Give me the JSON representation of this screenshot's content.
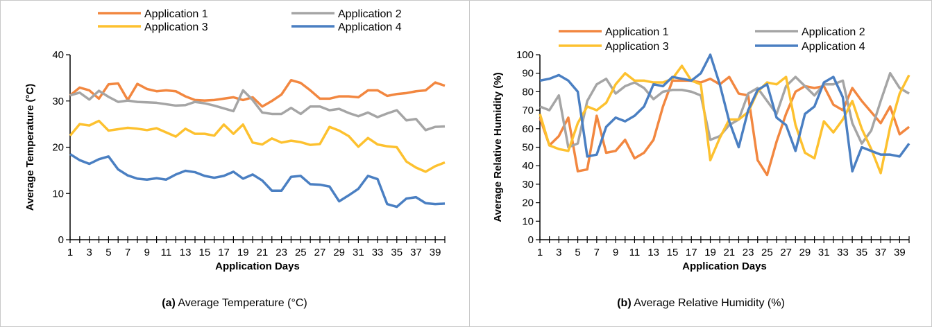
{
  "colors": {
    "Application 1": "#F28740",
    "Application 2": "#A5A5A5",
    "Application 3": "#FDC12F",
    "Application 4": "#4A7FC2",
    "panel_border": "#C8C8C8"
  },
  "chart_data": [
    {
      "type": "line",
      "caption_tag": "(a)",
      "caption_text": "Average Temperature (°C)",
      "xlabel": "Application Days",
      "ylabel": "Average Temperature (°C)",
      "ylim": [
        0,
        40
      ],
      "yticks": [
        0,
        10,
        20,
        30,
        40
      ],
      "xlim": [
        1,
        40
      ],
      "xticks": [
        1,
        3,
        5,
        7,
        9,
        11,
        13,
        15,
        17,
        19,
        21,
        23,
        25,
        27,
        29,
        31,
        33,
        35,
        37,
        39
      ],
      "legend_position": "top",
      "grid": false,
      "x": [
        1,
        2,
        3,
        4,
        5,
        6,
        7,
        8,
        9,
        10,
        11,
        12,
        13,
        14,
        15,
        16,
        17,
        18,
        19,
        20,
        21,
        22,
        23,
        24,
        25,
        26,
        27,
        28,
        29,
        30,
        31,
        32,
        33,
        34,
        35,
        36,
        37,
        38,
        39,
        40
      ],
      "series": [
        {
          "name": "Application 1",
          "values": [
            31.2,
            32.9,
            32.3,
            30.5,
            33.6,
            33.8,
            30.2,
            33.7,
            32.6,
            32.1,
            32.3,
            32.1,
            31.0,
            30.2,
            30.1,
            30.2,
            30.5,
            30.8,
            30.2,
            30.8,
            28.8,
            30.0,
            31.4,
            34.5,
            33.9,
            32.3,
            30.5,
            30.5,
            31.0,
            31.0,
            30.8,
            32.3,
            32.3,
            31.1,
            31.5,
            31.7,
            32.1,
            32.3,
            34.0,
            33.3
          ]
        },
        {
          "name": "Application 2",
          "values": [
            31.2,
            31.8,
            30.3,
            32.2,
            30.9,
            29.8,
            30.1,
            29.8,
            29.7,
            29.6,
            29.3,
            29.0,
            29.1,
            29.8,
            29.5,
            29.0,
            28.4,
            27.8,
            32.3,
            30.2,
            27.5,
            27.2,
            27.2,
            28.5,
            27.2,
            28.8,
            28.8,
            28.0,
            28.3,
            27.4,
            26.7,
            27.5,
            26.5,
            27.3,
            28.0,
            25.8,
            26.1,
            23.7,
            24.4,
            24.5
          ]
        },
        {
          "name": "Application 3",
          "values": [
            22.5,
            25.0,
            24.7,
            25.7,
            23.6,
            23.9,
            24.2,
            24.0,
            23.7,
            24.1,
            23.2,
            22.3,
            24.0,
            22.9,
            22.9,
            22.5,
            24.9,
            22.9,
            24.9,
            21.0,
            20.6,
            21.9,
            21.0,
            21.4,
            21.1,
            20.5,
            20.7,
            24.4,
            23.6,
            22.4,
            20.1,
            22.0,
            20.6,
            20.2,
            20.0,
            16.9,
            15.6,
            14.7,
            15.9,
            16.7
          ]
        },
        {
          "name": "Application 4",
          "values": [
            18.5,
            17.2,
            16.4,
            17.4,
            18.0,
            15.2,
            13.9,
            13.2,
            13.0,
            13.3,
            13.0,
            14.1,
            14.9,
            14.6,
            13.8,
            13.4,
            13.8,
            14.7,
            13.2,
            14.1,
            12.8,
            10.6,
            10.6,
            13.6,
            13.8,
            12.0,
            11.9,
            11.5,
            8.3,
            9.6,
            11.0,
            13.8,
            13.1,
            7.7,
            7.1,
            8.9,
            9.2,
            7.9,
            7.7,
            7.8
          ]
        }
      ]
    },
    {
      "type": "line",
      "caption_tag": "(b)",
      "caption_text": "Average Relative Humidity (%)",
      "xlabel": "Application Days",
      "ylabel": "Average Relative Humidity (%)",
      "ylim": [
        0,
        100
      ],
      "yticks": [
        0,
        10,
        20,
        30,
        40,
        50,
        60,
        70,
        80,
        90,
        100
      ],
      "xlim": [
        1,
        40
      ],
      "xticks": [
        1,
        3,
        5,
        7,
        9,
        11,
        13,
        15,
        17,
        19,
        21,
        23,
        25,
        27,
        29,
        31,
        33,
        35,
        37,
        39
      ],
      "legend_position": "top",
      "grid": false,
      "x": [
        1,
        2,
        3,
        4,
        5,
        6,
        7,
        8,
        9,
        10,
        11,
        12,
        13,
        14,
        15,
        16,
        17,
        18,
        19,
        20,
        21,
        22,
        23,
        24,
        25,
        26,
        27,
        28,
        29,
        30,
        31,
        32,
        33,
        34,
        35,
        36,
        37,
        38,
        39,
        40
      ],
      "series": [
        {
          "name": "Application 1",
          "values": [
            66,
            51,
            56,
            66,
            37,
            38,
            67,
            47,
            48,
            54,
            44,
            47,
            54,
            72,
            86,
            86,
            86,
            85,
            87,
            84,
            88,
            79,
            78,
            43,
            35,
            53,
            68,
            80,
            83,
            82,
            83,
            73,
            70,
            82,
            75,
            69,
            63,
            72,
            57,
            61
          ]
        },
        {
          "name": "Application 2",
          "values": [
            72,
            70,
            78,
            50,
            52,
            75,
            84,
            87,
            79,
            83,
            85,
            82,
            76,
            80,
            81,
            81,
            80,
            78,
            54,
            56,
            62,
            65,
            79,
            82,
            75,
            68,
            83,
            88,
            83,
            78,
            84,
            84,
            86,
            63,
            52,
            59,
            75,
            90,
            82,
            79
          ]
        },
        {
          "name": "Application 3",
          "values": [
            68,
            51,
            49,
            48,
            63,
            72,
            70,
            74,
            84,
            90,
            86,
            86,
            85,
            85,
            87,
            94,
            86,
            84,
            43,
            55,
            65,
            65,
            69,
            80,
            85,
            84,
            88,
            62,
            47,
            44,
            64,
            58,
            65,
            75,
            60,
            49,
            36,
            61,
            79,
            89
          ]
        },
        {
          "name": "Application 4",
          "values": [
            86,
            87,
            89,
            86,
            80,
            45,
            46,
            61,
            66,
            64,
            67,
            72,
            84,
            83,
            88,
            87,
            86,
            90,
            100,
            84,
            64,
            50,
            70,
            81,
            84,
            66,
            62,
            48,
            68,
            72,
            85,
            88,
            77,
            37,
            50,
            48,
            46,
            46,
            45,
            52
          ]
        }
      ]
    }
  ]
}
